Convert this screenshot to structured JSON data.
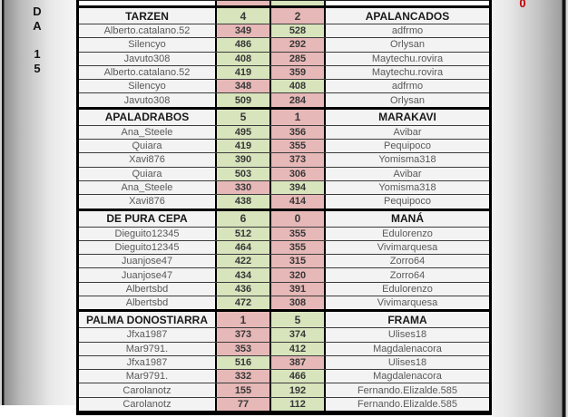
{
  "page": {
    "sidebar_letters": [
      "D",
      "A",
      "1",
      "5"
    ],
    "corner_badge": "0",
    "colors": {
      "win": "#D8E4BC",
      "loss": "#E6B8B7",
      "badge": "#C00000",
      "grid": "#000000"
    }
  },
  "top_partial_row": {
    "home_result": "loss",
    "away_result": "win"
  },
  "matches": [
    {
      "home_team": "TARZEN",
      "home_score": "4",
      "home_score_result": "win",
      "away_score": "2",
      "away_score_result": "loss",
      "away_team": "APALANCADOS",
      "games": [
        {
          "home_player": "Alberto.catalano.52",
          "home_points": "349",
          "home_result": "loss",
          "away_points": "528",
          "away_result": "win",
          "away_player": "adfrmo"
        },
        {
          "home_player": "Silencyo",
          "home_points": "486",
          "home_result": "win",
          "away_points": "292",
          "away_result": "loss",
          "away_player": "Orlysan"
        },
        {
          "home_player": "Javuto308",
          "home_points": "408",
          "home_result": "win",
          "away_points": "285",
          "away_result": "loss",
          "away_player": "Maytechu.rovira"
        },
        {
          "home_player": "Alberto.catalano.52",
          "home_points": "419",
          "home_result": "win",
          "away_points": "359",
          "away_result": "loss",
          "away_player": "Maytechu.rovira"
        },
        {
          "home_player": "Silencyo",
          "home_points": "348",
          "home_result": "loss",
          "away_points": "408",
          "away_result": "win",
          "away_player": "adfrmo"
        },
        {
          "home_player": "Javuto308",
          "home_points": "509",
          "home_result": "win",
          "away_points": "284",
          "away_result": "loss",
          "away_player": "Orlysan"
        }
      ]
    },
    {
      "home_team": "APALADRABOS",
      "home_score": "5",
      "home_score_result": "win",
      "away_score": "1",
      "away_score_result": "loss",
      "away_team": "MARAKAVI",
      "games": [
        {
          "home_player": "Ana_Steele",
          "home_points": "495",
          "home_result": "win",
          "away_points": "356",
          "away_result": "loss",
          "away_player": "Avibar"
        },
        {
          "home_player": "Quiara",
          "home_points": "419",
          "home_result": "win",
          "away_points": "355",
          "away_result": "loss",
          "away_player": "Pequipoco"
        },
        {
          "home_player": "Xavi876",
          "home_points": "390",
          "home_result": "win",
          "away_points": "373",
          "away_result": "loss",
          "away_player": "Yomisma318"
        },
        {
          "home_player": "Quiara",
          "home_points": "503",
          "home_result": "win",
          "away_points": "306",
          "away_result": "loss",
          "away_player": "Avibar"
        },
        {
          "home_player": "Ana_Steele",
          "home_points": "330",
          "home_result": "loss",
          "away_points": "394",
          "away_result": "win",
          "away_player": "Yomisma318"
        },
        {
          "home_player": "Xavi876",
          "home_points": "438",
          "home_result": "win",
          "away_points": "414",
          "away_result": "loss",
          "away_player": "Pequipoco"
        }
      ]
    },
    {
      "home_team": "DE PURA CEPA",
      "home_score": "6",
      "home_score_result": "win",
      "away_score": "0",
      "away_score_result": "loss",
      "away_team": "MANÁ",
      "games": [
        {
          "home_player": "Dieguito12345",
          "home_points": "512",
          "home_result": "win",
          "away_points": "355",
          "away_result": "loss",
          "away_player": "Edulorenzo"
        },
        {
          "home_player": "Dieguito12345",
          "home_points": "464",
          "home_result": "win",
          "away_points": "355",
          "away_result": "loss",
          "away_player": "Vivimarquesa"
        },
        {
          "home_player": "Juanjose47",
          "home_points": "422",
          "home_result": "win",
          "away_points": "315",
          "away_result": "loss",
          "away_player": "Zorro64"
        },
        {
          "home_player": "Juanjose47",
          "home_points": "434",
          "home_result": "win",
          "away_points": "320",
          "away_result": "loss",
          "away_player": "Zorro64"
        },
        {
          "home_player": "Albertsbd",
          "home_points": "436",
          "home_result": "win",
          "away_points": "391",
          "away_result": "loss",
          "away_player": "Edulorenzo"
        },
        {
          "home_player": "Albertsbd",
          "home_points": "472",
          "home_result": "win",
          "away_points": "308",
          "away_result": "loss",
          "away_player": "Vivimarquesa"
        }
      ]
    },
    {
      "home_team": "PALMA DONOSTIARRA",
      "home_score": "1",
      "home_score_result": "loss",
      "away_score": "5",
      "away_score_result": "win",
      "away_team": "FRAMA",
      "games": [
        {
          "home_player": "Jfxa1987",
          "home_points": "373",
          "home_result": "loss",
          "away_points": "374",
          "away_result": "win",
          "away_player": "Ulises18"
        },
        {
          "home_player": "Mar9791.",
          "home_points": "353",
          "home_result": "loss",
          "away_points": "412",
          "away_result": "win",
          "away_player": "Magdalenacora"
        },
        {
          "home_player": "Jfxa1987",
          "home_points": "516",
          "home_result": "win",
          "away_points": "387",
          "away_result": "loss",
          "away_player": "Ulises18"
        },
        {
          "home_player": "Mar9791.",
          "home_points": "332",
          "home_result": "loss",
          "away_points": "466",
          "away_result": "win",
          "away_player": "Magdalenacora"
        },
        {
          "home_player": "Carolanotz",
          "home_points": "155",
          "home_result": "loss",
          "away_points": "192",
          "away_result": "win",
          "away_player": "Fernando.Elizalde.585"
        },
        {
          "home_player": "Carolanotz",
          "home_points": "77",
          "home_result": "loss",
          "away_points": "112",
          "away_result": "win",
          "away_player": "Fernando.Elizalde.585"
        }
      ]
    }
  ]
}
